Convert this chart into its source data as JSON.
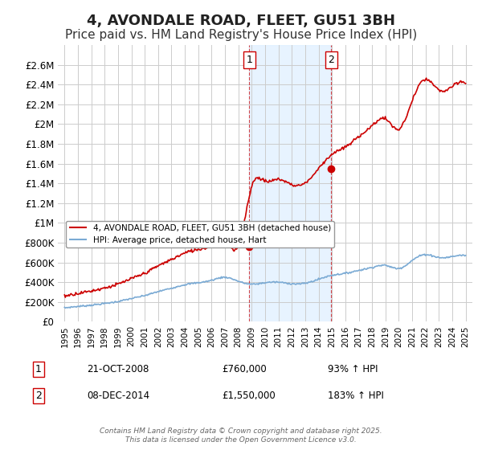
{
  "title": "4, AVONDALE ROAD, FLEET, GU51 3BH",
  "subtitle": "Price paid vs. HM Land Registry's House Price Index (HPI)",
  "title_fontsize": 13,
  "subtitle_fontsize": 11,
  "xlabel": "",
  "ylabel": "",
  "ylim": [
    0,
    2800000
  ],
  "yticks": [
    0,
    200000,
    400000,
    600000,
    800000,
    1000000,
    1200000,
    1400000,
    1600000,
    1800000,
    2000000,
    2200000,
    2400000,
    2600000
  ],
  "ytick_labels": [
    "£0",
    "£200K",
    "£400K",
    "£600K",
    "£800K",
    "£1M",
    "£1.2M",
    "£1.4M",
    "£1.6M",
    "£1.8M",
    "£2M",
    "£2.2M",
    "£2.4M",
    "£2.6M"
  ],
  "background_color": "#ffffff",
  "plot_bg_color": "#ffffff",
  "grid_color": "#cccccc",
  "red_line_color": "#cc0000",
  "blue_line_color": "#7aaad4",
  "shade_color": "#ddeeff",
  "marker1_date_x": 2008.81,
  "marker1_price": 760000,
  "marker2_date_x": 2014.94,
  "marker2_price": 1550000,
  "marker1_label": "1",
  "marker2_label": "2",
  "legend_label_red": "4, AVONDALE ROAD, FLEET, GU51 3BH (detached house)",
  "legend_label_blue": "HPI: Average price, detached house, Hart",
  "annotation1": "1    21-OCT-2008          £760,000          93% ↑ HPI",
  "annotation2": "2    08-DEC-2014       £1,550,000        183% ↑ HPI",
  "footer": "Contains HM Land Registry data © Crown copyright and database right 2025.\nThis data is licensed under the Open Government Licence v3.0.",
  "xmin": 1994.5,
  "xmax": 2025.5,
  "xticks": [
    1995,
    1996,
    1997,
    1998,
    1999,
    2000,
    2001,
    2002,
    2003,
    2004,
    2005,
    2006,
    2007,
    2008,
    2009,
    2010,
    2011,
    2012,
    2013,
    2014,
    2015,
    2016,
    2017,
    2018,
    2019,
    2020,
    2021,
    2022,
    2023,
    2024,
    2025
  ]
}
